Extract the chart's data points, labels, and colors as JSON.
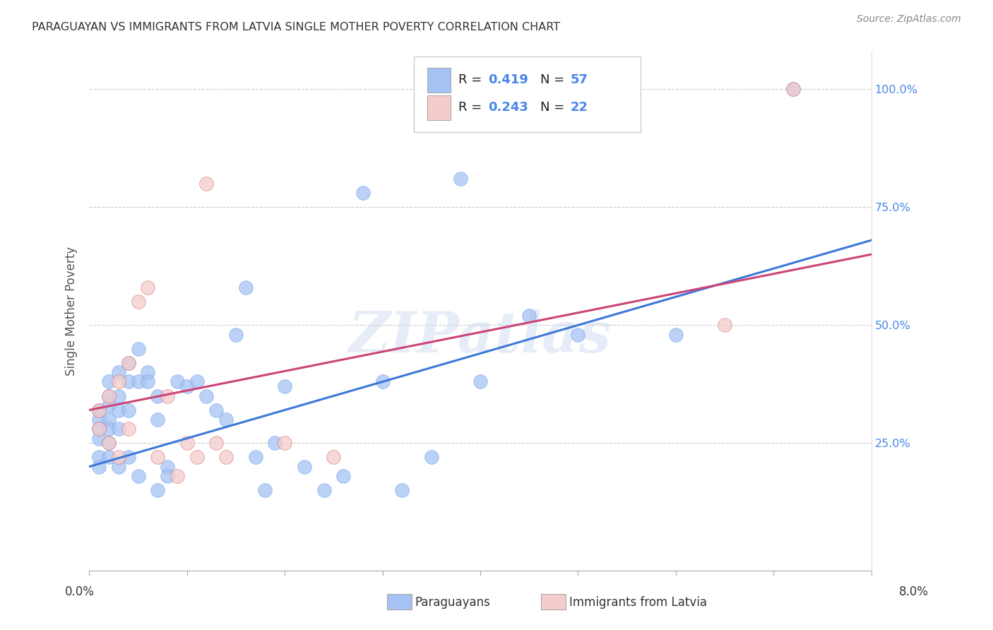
{
  "title": "PARAGUAYAN VS IMMIGRANTS FROM LATVIA SINGLE MOTHER POVERTY CORRELATION CHART",
  "source": "Source: ZipAtlas.com",
  "ylabel": "Single Mother Poverty",
  "legend_label1": "Paraguayans",
  "legend_label2": "Immigrants from Latvia",
  "r1": 0.419,
  "n1": 57,
  "r2": 0.243,
  "n2": 22,
  "color1": "#a4c2f4",
  "color2": "#f4cccc",
  "color1_edge": "#6d9eeb",
  "color2_edge": "#e06666",
  "line_color1": "#3c78d8",
  "line_color2": "#cc4477",
  "blue_x": [
    0.001,
    0.001,
    0.001,
    0.001,
    0.001,
    0.001,
    0.002,
    0.002,
    0.002,
    0.002,
    0.002,
    0.002,
    0.002,
    0.003,
    0.003,
    0.003,
    0.003,
    0.003,
    0.004,
    0.004,
    0.004,
    0.004,
    0.005,
    0.005,
    0.005,
    0.006,
    0.006,
    0.007,
    0.007,
    0.007,
    0.008,
    0.008,
    0.009,
    0.01,
    0.011,
    0.012,
    0.013,
    0.014,
    0.015,
    0.016,
    0.017,
    0.018,
    0.019,
    0.02,
    0.022,
    0.024,
    0.026,
    0.028,
    0.03,
    0.032,
    0.035,
    0.038,
    0.04,
    0.045,
    0.05,
    0.06,
    0.072
  ],
  "blue_y": [
    0.32,
    0.3,
    0.28,
    0.26,
    0.22,
    0.2,
    0.38,
    0.35,
    0.33,
    0.3,
    0.28,
    0.25,
    0.22,
    0.4,
    0.35,
    0.32,
    0.28,
    0.2,
    0.42,
    0.38,
    0.32,
    0.22,
    0.45,
    0.38,
    0.18,
    0.4,
    0.38,
    0.35,
    0.3,
    0.15,
    0.2,
    0.18,
    0.38,
    0.37,
    0.38,
    0.35,
    0.32,
    0.3,
    0.48,
    0.58,
    0.22,
    0.15,
    0.25,
    0.37,
    0.2,
    0.15,
    0.18,
    0.78,
    0.38,
    0.15,
    0.22,
    0.81,
    0.38,
    0.52,
    0.48,
    0.48,
    1.0
  ],
  "pink_x": [
    0.001,
    0.001,
    0.002,
    0.002,
    0.003,
    0.003,
    0.004,
    0.004,
    0.005,
    0.006,
    0.007,
    0.008,
    0.009,
    0.01,
    0.011,
    0.012,
    0.013,
    0.014,
    0.02,
    0.025,
    0.065,
    0.072
  ],
  "pink_y": [
    0.32,
    0.28,
    0.35,
    0.25,
    0.38,
    0.22,
    0.42,
    0.28,
    0.55,
    0.58,
    0.22,
    0.35,
    0.18,
    0.25,
    0.22,
    0.8,
    0.25,
    0.22,
    0.25,
    0.22,
    0.5,
    1.0
  ],
  "blue_line_x0": 0.0,
  "blue_line_y0": 0.2,
  "blue_line_x1": 0.08,
  "blue_line_y1": 0.68,
  "pink_line_x0": 0.0,
  "pink_line_y0": 0.32,
  "pink_line_x1": 0.08,
  "pink_line_y1": 0.65,
  "xmin": 0.0,
  "xmax": 0.08,
  "ymin": 0.0,
  "ymax": 1.08,
  "watermark": "ZIPatlas",
  "background_color": "#ffffff",
  "legend_text_color": "#4a86e8",
  "legend_r_n_color": "#222222"
}
